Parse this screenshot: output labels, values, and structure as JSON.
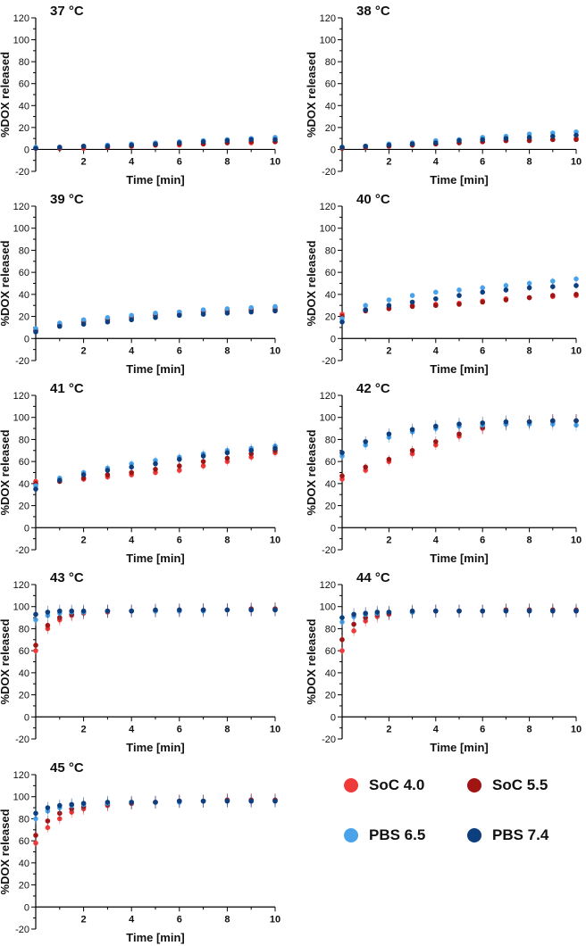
{
  "series_styles": [
    {
      "name": "SoC 4.0",
      "color": "#F03A3A"
    },
    {
      "name": "SoC 5.5",
      "color": "#A01414"
    },
    {
      "name": "PBS 6.5",
      "color": "#4AA3EA"
    },
    {
      "name": "PBS 7.4",
      "color": "#0D3F7E"
    }
  ],
  "legend": {
    "items": [
      {
        "label": "SoC 4.0",
        "color": "#F03A3A"
      },
      {
        "label": "SoC 5.5",
        "color": "#A01414"
      },
      {
        "label": "PBS 6.5",
        "color": "#4AA3EA"
      },
      {
        "label": "PBS 7.4",
        "color": "#0D3F7E"
      }
    ]
  },
  "chart_data": [
    {
      "type": "scatter",
      "title": "37 °C",
      "xlabel": "Time [min]",
      "ylabel": "%DOX released",
      "xlim": [
        0,
        10
      ],
      "ylim": [
        -20,
        120
      ],
      "xticks": [
        2,
        4,
        6,
        8,
        10
      ],
      "yticks": [
        -20,
        0,
        20,
        40,
        60,
        80,
        100,
        120
      ],
      "x": [
        0,
        1,
        2,
        3,
        4,
        5,
        6,
        7,
        8,
        9,
        10
      ],
      "series": [
        {
          "name": "SoC 4.0",
          "values": [
            1,
            1,
            1,
            2,
            3,
            4,
            4,
            5,
            6,
            6,
            7
          ]
        },
        {
          "name": "SoC 5.5",
          "values": [
            1,
            1,
            2,
            2,
            3,
            4,
            5,
            5,
            6,
            7,
            7
          ]
        },
        {
          "name": "PBS 6.5",
          "values": [
            2,
            2,
            3,
            4,
            5,
            6,
            7,
            8,
            9,
            10,
            11
          ]
        },
        {
          "name": "PBS 7.4",
          "values": [
            1,
            2,
            3,
            3,
            4,
            5,
            6,
            7,
            8,
            9,
            9
          ]
        }
      ]
    },
    {
      "type": "scatter",
      "title": "38 °C",
      "xlabel": "Time [min]",
      "ylabel": "%DOX released",
      "xlim": [
        0,
        10
      ],
      "ylim": [
        -20,
        120
      ],
      "xticks": [
        2,
        4,
        6,
        8,
        10
      ],
      "yticks": [
        -20,
        0,
        20,
        40,
        60,
        80,
        100,
        120
      ],
      "x": [
        0,
        1,
        2,
        3,
        4,
        5,
        6,
        7,
        8,
        9,
        10
      ],
      "series": [
        {
          "name": "SoC 4.0",
          "values": [
            1,
            2,
            3,
            4,
            5,
            6,
            7,
            8,
            9,
            9,
            10
          ]
        },
        {
          "name": "SoC 5.5",
          "values": [
            1,
            2,
            3,
            4,
            5,
            6,
            7,
            8,
            8,
            9,
            9
          ]
        },
        {
          "name": "PBS 6.5",
          "values": [
            2,
            3,
            5,
            6,
            8,
            9,
            11,
            12,
            14,
            15,
            16
          ]
        },
        {
          "name": "PBS 7.4",
          "values": [
            2,
            3,
            4,
            5,
            6,
            8,
            9,
            10,
            11,
            12,
            13
          ]
        }
      ]
    },
    {
      "type": "scatter",
      "title": "39 °C",
      "xlabel": "Time [min]",
      "ylabel": "%DOX released",
      "xlim": [
        0,
        10
      ],
      "ylim": [
        -20,
        120
      ],
      "xticks": [
        2,
        4,
        6,
        8,
        10
      ],
      "yticks": [
        -20,
        0,
        20,
        40,
        60,
        80,
        100,
        120
      ],
      "x": [
        0,
        1,
        2,
        3,
        4,
        5,
        6,
        7,
        8,
        9,
        10
      ],
      "series": [
        {
          "name": "SoC 4.0",
          "values": [
            8,
            13,
            16,
            18,
            20,
            22,
            24,
            25,
            26,
            27,
            28
          ]
        },
        {
          "name": "SoC 5.5",
          "values": [
            7,
            12,
            15,
            17,
            19,
            21,
            22,
            24,
            25,
            26,
            26
          ]
        },
        {
          "name": "PBS 6.5",
          "values": [
            9,
            14,
            17,
            19,
            21,
            23,
            24,
            26,
            27,
            28,
            29
          ]
        },
        {
          "name": "PBS 7.4",
          "values": [
            6,
            11,
            13,
            15,
            17,
            19,
            21,
            22,
            23,
            24,
            25
          ]
        }
      ]
    },
    {
      "type": "scatter",
      "title": "40 °C",
      "xlabel": "Time [min]",
      "ylabel": "%DOX released",
      "xlim": [
        0,
        10
      ],
      "ylim": [
        -20,
        120
      ],
      "xticks": [
        2,
        4,
        6,
        8,
        10
      ],
      "yticks": [
        -20,
        0,
        20,
        40,
        60,
        80,
        100,
        120
      ],
      "x": [
        0,
        1,
        2,
        3,
        4,
        5,
        6,
        7,
        8,
        9,
        10
      ],
      "series": [
        {
          "name": "SoC 4.0",
          "values": [
            22,
            26,
            28,
            30,
            31,
            32,
            34,
            36,
            37,
            38,
            39
          ]
        },
        {
          "name": "SoC 5.5",
          "values": [
            20,
            25,
            27,
            29,
            30,
            31,
            33,
            35,
            37,
            39,
            40
          ]
        },
        {
          "name": "PBS 6.5",
          "values": [
            18,
            30,
            35,
            39,
            42,
            44,
            46,
            48,
            50,
            52,
            54
          ]
        },
        {
          "name": "PBS 7.4",
          "values": [
            15,
            26,
            30,
            33,
            36,
            39,
            42,
            44,
            46,
            47,
            48
          ]
        }
      ]
    },
    {
      "type": "scatter",
      "title": "41 °C",
      "xlabel": "Time [min]",
      "ylabel": "%DOX released",
      "xlim": [
        0,
        10
      ],
      "ylim": [
        -20,
        120
      ],
      "xticks": [
        2,
        4,
        6,
        8,
        10
      ],
      "yticks": [
        -20,
        0,
        20,
        40,
        60,
        80,
        100,
        120
      ],
      "x": [
        0,
        1,
        2,
        3,
        4,
        5,
        6,
        7,
        8,
        9,
        10
      ],
      "series": [
        {
          "name": "SoC 4.0",
          "values": [
            42,
            42,
            44,
            46,
            48,
            50,
            52,
            56,
            60,
            64,
            68
          ]
        },
        {
          "name": "SoC 5.5",
          "values": [
            40,
            42,
            45,
            48,
            50,
            53,
            56,
            60,
            63,
            67,
            70
          ]
        },
        {
          "name": "PBS 6.5",
          "values": [
            38,
            45,
            50,
            54,
            58,
            61,
            64,
            67,
            70,
            72,
            74
          ]
        },
        {
          "name": "PBS 7.4",
          "values": [
            35,
            43,
            48,
            52,
            55,
            58,
            62,
            65,
            68,
            70,
            72
          ]
        }
      ]
    },
    {
      "type": "scatter",
      "title": "42 °C",
      "xlabel": "Time [min]",
      "ylabel": "%DOX released",
      "xlim": [
        0,
        10
      ],
      "ylim": [
        -20,
        120
      ],
      "xticks": [
        2,
        4,
        6,
        8,
        10
      ],
      "yticks": [
        -20,
        0,
        20,
        40,
        60,
        80,
        100,
        120
      ],
      "x": [
        0,
        1,
        2,
        3,
        4,
        5,
        6,
        7,
        8,
        9,
        10
      ],
      "series": [
        {
          "name": "SoC 4.0",
          "values": [
            44,
            52,
            60,
            67,
            75,
            83,
            90,
            94,
            96,
            96,
            97
          ]
        },
        {
          "name": "SoC 5.5",
          "values": [
            47,
            55,
            62,
            70,
            78,
            85,
            91,
            94,
            96,
            97,
            97
          ]
        },
        {
          "name": "PBS 6.5",
          "values": [
            65,
            75,
            82,
            87,
            90,
            92,
            93,
            94,
            94,
            94,
            93
          ]
        },
        {
          "name": "PBS 7.4",
          "values": [
            68,
            78,
            85,
            89,
            92,
            94,
            95,
            96,
            96,
            97,
            97
          ]
        }
      ]
    },
    {
      "type": "scatter",
      "title": "43 °C",
      "xlabel": "Time [min]",
      "ylabel": "%DOX released",
      "xlim": [
        0,
        10
      ],
      "ylim": [
        -20,
        120
      ],
      "xticks": [
        2,
        4,
        6,
        8,
        10
      ],
      "yticks": [
        -20,
        0,
        20,
        40,
        60,
        80,
        100,
        120
      ],
      "x": [
        0,
        0.5,
        1,
        1.5,
        2,
        3,
        4,
        5,
        6,
        7,
        8,
        9,
        10
      ],
      "series": [
        {
          "name": "SoC 4.0",
          "values": [
            60,
            80,
            88,
            92,
            94,
            95,
            96,
            96,
            96,
            97,
            97,
            97,
            98
          ]
        },
        {
          "name": "SoC 5.5",
          "values": [
            65,
            83,
            90,
            93,
            95,
            96,
            96,
            96,
            97,
            97,
            97,
            98,
            98
          ]
        },
        {
          "name": "PBS 6.5",
          "values": [
            88,
            92,
            94,
            95,
            95,
            96,
            96,
            96,
            96,
            96,
            97,
            97,
            97
          ]
        },
        {
          "name": "PBS 7.4",
          "values": [
            93,
            95,
            96,
            96,
            96,
            96,
            96,
            97,
            97,
            97,
            97,
            97,
            97
          ]
        }
      ]
    },
    {
      "type": "scatter",
      "title": "44 °C",
      "xlabel": "Time [min]",
      "ylabel": "%DOX released",
      "xlim": [
        0,
        10
      ],
      "ylim": [
        -20,
        120
      ],
      "xticks": [
        2,
        4,
        6,
        8,
        10
      ],
      "yticks": [
        -20,
        0,
        20,
        40,
        60,
        80,
        100,
        120
      ],
      "x": [
        0,
        0.5,
        1,
        1.5,
        2,
        3,
        4,
        5,
        6,
        7,
        8,
        9,
        10
      ],
      "series": [
        {
          "name": "SoC 4.0",
          "values": [
            60,
            78,
            87,
            91,
            93,
            95,
            96,
            96,
            96,
            97,
            97,
            97,
            96
          ]
        },
        {
          "name": "SoC 5.5",
          "values": [
            70,
            84,
            90,
            93,
            94,
            95,
            96,
            96,
            96,
            97,
            97,
            97,
            97
          ]
        },
        {
          "name": "PBS 6.5",
          "values": [
            86,
            91,
            93,
            94,
            95,
            95,
            96,
            96,
            96,
            96,
            96,
            96,
            96
          ]
        },
        {
          "name": "PBS 7.4",
          "values": [
            90,
            93,
            94,
            95,
            95,
            96,
            96,
            96,
            96,
            96,
            96,
            96,
            96
          ]
        }
      ]
    },
    {
      "type": "scatter",
      "title": "45 °C",
      "xlabel": "Time [min]",
      "ylabel": "%DOX released",
      "xlim": [
        0,
        10
      ],
      "ylim": [
        -20,
        120
      ],
      "xticks": [
        2,
        4,
        6,
        8,
        10
      ],
      "yticks": [
        -20,
        0,
        20,
        40,
        60,
        80,
        100,
        120
      ],
      "x": [
        0,
        0.5,
        1,
        1.5,
        2,
        3,
        4,
        5,
        6,
        7,
        8,
        9,
        10
      ],
      "series": [
        {
          "name": "SoC 4.0",
          "values": [
            58,
            72,
            80,
            86,
            89,
            92,
            94,
            95,
            96,
            96,
            97,
            97,
            97
          ]
        },
        {
          "name": "SoC 5.5",
          "values": [
            65,
            78,
            85,
            89,
            91,
            93,
            94,
            95,
            96,
            96,
            97,
            97,
            97
          ]
        },
        {
          "name": "PBS 6.5",
          "values": [
            80,
            87,
            90,
            92,
            93,
            94,
            95,
            95,
            95,
            96,
            96,
            96,
            96
          ]
        },
        {
          "name": "PBS 7.4",
          "values": [
            85,
            90,
            92,
            93,
            94,
            95,
            95,
            95,
            96,
            96,
            96,
            96,
            96
          ]
        }
      ]
    }
  ]
}
